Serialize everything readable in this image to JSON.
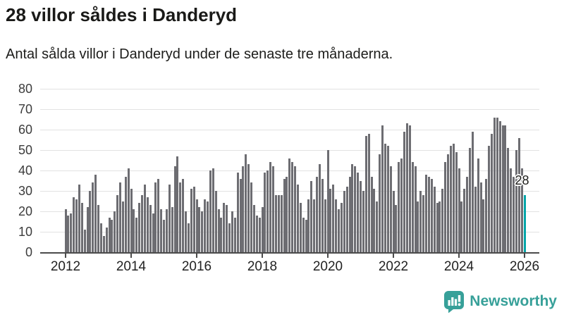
{
  "header": {
    "title": "28 villor såldes i Danderyd",
    "subtitle": "Antal sålda villor i Danderyd under de senaste tre månaderna."
  },
  "chart_data": {
    "type": "bar",
    "title": "28 villor såldes i Danderyd",
    "subtitle": "Antal sålda villor i Danderyd under de senaste tre månaderna.",
    "frequency": "monthly",
    "x_start": "2012-01",
    "x_end": "2026-01",
    "x_tick_labels": [
      "2012",
      "2014",
      "2016",
      "2018",
      "2020",
      "2022",
      "2024",
      "2026"
    ],
    "y_ticks": [
      0,
      10,
      20,
      30,
      40,
      50,
      60,
      70,
      80
    ],
    "ylim": [
      0,
      80
    ],
    "grid": "horizontal",
    "legend": "none",
    "bar_color": "#6d6d72",
    "series": [
      {
        "name": "Antal sålda villor (rullande tre månader)",
        "values": [
          21,
          18,
          19,
          27,
          26,
          33,
          24,
          11,
          22,
          30,
          34,
          38,
          23,
          14,
          8,
          12,
          17,
          16,
          20,
          28,
          34,
          25,
          37,
          41,
          31,
          21,
          17,
          24,
          28,
          33,
          27,
          23,
          19,
          34,
          36,
          21,
          16,
          21,
          33,
          22,
          42,
          47,
          34,
          36,
          20,
          14,
          31,
          32,
          26,
          22,
          20,
          26,
          25,
          40,
          41,
          30,
          21,
          17,
          24,
          23,
          14,
          20,
          17,
          39,
          36,
          42,
          48,
          43,
          34,
          23,
          18,
          17,
          22,
          39,
          40,
          44,
          42,
          28,
          28,
          28,
          36,
          37,
          46,
          44,
          42,
          33,
          24,
          17,
          16,
          26,
          35,
          26,
          37,
          43,
          36,
          26,
          50,
          31,
          33,
          26,
          21,
          24,
          30,
          32,
          37,
          43,
          42,
          39,
          35,
          30,
          57,
          58,
          37,
          31,
          25,
          48,
          62,
          53,
          52,
          42,
          30,
          23,
          44,
          46,
          59,
          63,
          62,
          44,
          42,
          25,
          30,
          28,
          38,
          37,
          36,
          32,
          24,
          25,
          31,
          44,
          48,
          52,
          53,
          49,
          41,
          25,
          31,
          37,
          51,
          59,
          32,
          46,
          34,
          26,
          36,
          52,
          58,
          66,
          66,
          64,
          62,
          62,
          51,
          41,
          37,
          50,
          56,
          41,
          28
        ]
      }
    ],
    "highlight": {
      "index": 168,
      "value": 28,
      "label": "28",
      "color": "#00a5a8"
    }
  },
  "annotation": {
    "current_value": "28"
  },
  "footer": {
    "brand": "Newsworthy",
    "brand_color": "#37a099",
    "icon": "bar-chart-speech-bubble-icon"
  }
}
